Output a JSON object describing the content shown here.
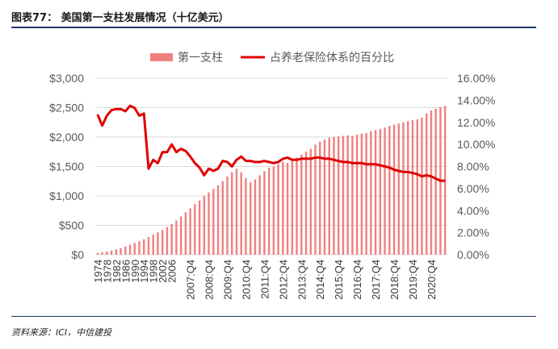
{
  "header": {
    "title": "图表77：  美国第一支柱发展情况（十亿美元）"
  },
  "footer": {
    "source": "资料来源：ICI，中信建投"
  },
  "chart_data": {
    "type": "bar+line",
    "title": "美国第一支柱发展情况（十亿美元）",
    "legend": {
      "placement": "top",
      "bar_label": "第一支柱",
      "line_label": "占养老保险体系的百分比"
    },
    "colors": {
      "bar": "#f08080",
      "line": "#e00000",
      "grid": "#d9d9d9"
    },
    "y_left": {
      "range": [
        0,
        3000
      ],
      "ticks": [
        0,
        500,
        1000,
        1500,
        2000,
        2500,
        3000
      ],
      "tick_labels": [
        "$0",
        "$500",
        "$1,000",
        "$1,500",
        "$2,000",
        "$2,500",
        "$3,000"
      ]
    },
    "y_right": {
      "range": [
        0,
        16
      ],
      "ticks": [
        0,
        2,
        4,
        6,
        8,
        10,
        12,
        14,
        16
      ],
      "tick_labels": [
        "0.00%",
        "2.00%",
        "4.00%",
        "6.00%",
        "8.00%",
        "10.00%",
        "12.00%",
        "14.00%",
        "16.00%"
      ]
    },
    "x_tick_labels": [
      "1974",
      "1978",
      "1982",
      "1986",
      "1990",
      "1994",
      "1998",
      "2002",
      "2006",
      "2007:Q4",
      "2008:Q4",
      "2009:Q4",
      "2010:Q4",
      "2011:Q4",
      "2012:Q4",
      "2013:Q4",
      "2014:Q4",
      "2015:Q4",
      "2016:Q4",
      "2017:Q4",
      "2018:Q4",
      "2019:Q4",
      "2020:Q4"
    ],
    "x_tick_indices": [
      0,
      2,
      4,
      6,
      8,
      10,
      12,
      14,
      16,
      20,
      24,
      28,
      32,
      36,
      40,
      44,
      48,
      52,
      56,
      60,
      64,
      68,
      72
    ],
    "series": [
      {
        "name": "第一支柱",
        "kind": "bar",
        "axis": "left",
        "values": [
          30,
          40,
          55,
          70,
          90,
          110,
          140,
          170,
          200,
          230,
          260,
          300,
          340,
          380,
          420,
          470,
          520,
          580,
          650,
          720,
          790,
          860,
          920,
          1000,
          1060,
          1120,
          1180,
          1250,
          1330,
          1400,
          1460,
          1400,
          1300,
          1230,
          1280,
          1350,
          1420,
          1480,
          1500,
          1540,
          1580,
          1560,
          1600,
          1650,
          1700,
          1750,
          1800,
          1870,
          1920,
          1960,
          1990,
          2000,
          2010,
          2020,
          2030,
          2020,
          2040,
          2060,
          2070,
          2100,
          2120,
          2140,
          2160,
          2190,
          2210,
          2230,
          2250,
          2270,
          2290,
          2300,
          2330,
          2400,
          2450,
          2480,
          2510,
          2530
        ]
      },
      {
        "name": "占养老保险体系的百分比",
        "kind": "line",
        "axis": "right",
        "values": [
          12.7,
          11.7,
          12.6,
          13.1,
          13.2,
          13.2,
          13.0,
          13.5,
          13.3,
          12.6,
          12.8,
          7.8,
          8.6,
          8.3,
          9.3,
          9.3,
          10.0,
          9.3,
          9.6,
          9.4,
          8.9,
          8.3,
          7.9,
          7.2,
          7.8,
          7.6,
          7.8,
          8.5,
          8.4,
          8.0,
          8.6,
          8.9,
          8.5,
          8.5,
          8.4,
          8.4,
          8.5,
          8.4,
          8.3,
          8.4,
          8.7,
          8.8,
          8.6,
          8.6,
          8.7,
          8.7,
          8.7,
          8.8,
          8.8,
          8.7,
          8.7,
          8.6,
          8.5,
          8.4,
          8.4,
          8.3,
          8.3,
          8.3,
          8.2,
          8.2,
          8.2,
          8.1,
          8.0,
          7.9,
          7.7,
          7.6,
          7.5,
          7.5,
          7.4,
          7.3,
          7.1,
          7.2,
          7.1,
          6.9,
          6.7,
          6.7
        ]
      }
    ]
  }
}
